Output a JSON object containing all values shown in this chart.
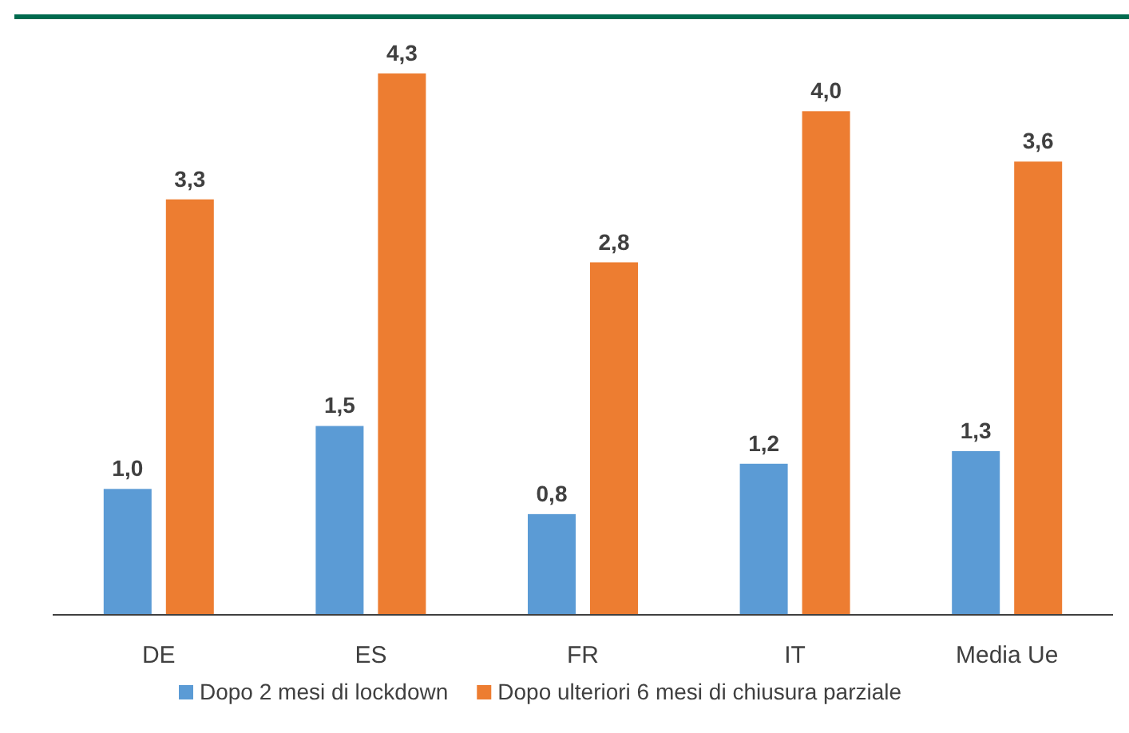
{
  "chart_data": {
    "type": "bar",
    "categories": [
      "DE",
      "ES",
      "FR",
      "IT",
      "Media Ue"
    ],
    "series": [
      {
        "name": "Dopo 2 mesi di lockdown",
        "color": "#5b9bd5",
        "values": [
          1.0,
          1.5,
          0.8,
          1.2,
          1.3
        ],
        "value_labels": [
          "1,0",
          "1,5",
          "0,8",
          "1,2",
          "1,3"
        ]
      },
      {
        "name": "Dopo ulteriori 6 mesi di chiusura parziale",
        "color": "#ed7d31",
        "values": [
          3.3,
          4.3,
          2.8,
          4.0,
          3.6
        ],
        "value_labels": [
          "3,3",
          "4,3",
          "2,8",
          "4,0",
          "3,6"
        ]
      }
    ],
    "legend": "bottom"
  }
}
